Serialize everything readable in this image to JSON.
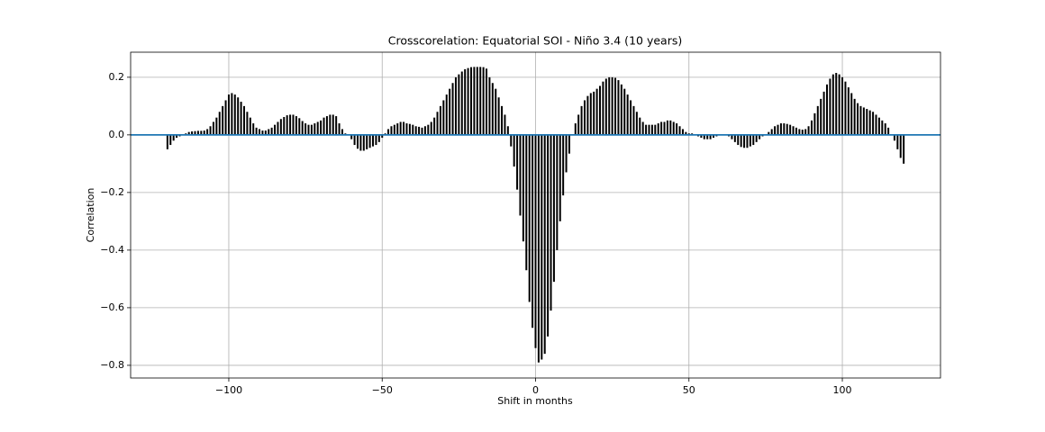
{
  "chart_data": {
    "type": "xcorr",
    "title": "Crosscorelation: Equatorial SOI - Niño 3.4 (10 years)",
    "xlabel": "Shift in months",
    "ylabel": "Correlation",
    "x": [
      -120,
      -119,
      -118,
      -117,
      -116,
      -115,
      -114,
      -113,
      -112,
      -111,
      -110,
      -109,
      -108,
      -107,
      -106,
      -105,
      -104,
      -103,
      -102,
      -101,
      -100,
      -99,
      -98,
      -97,
      -96,
      -95,
      -94,
      -93,
      -92,
      -91,
      -90,
      -89,
      -88,
      -87,
      -86,
      -85,
      -84,
      -83,
      -82,
      -81,
      -80,
      -79,
      -78,
      -77,
      -76,
      -75,
      -74,
      -73,
      -72,
      -71,
      -70,
      -69,
      -68,
      -67,
      -66,
      -65,
      -64,
      -63,
      -62,
      -61,
      -60,
      -59,
      -58,
      -57,
      -56,
      -55,
      -54,
      -53,
      -52,
      -51,
      -50,
      -49,
      -48,
      -47,
      -46,
      -45,
      -44,
      -43,
      -42,
      -41,
      -40,
      -39,
      -38,
      -37,
      -36,
      -35,
      -34,
      -33,
      -32,
      -31,
      -30,
      -29,
      -28,
      -27,
      -26,
      -25,
      -24,
      -23,
      -22,
      -21,
      -20,
      -19,
      -18,
      -17,
      -16,
      -15,
      -14,
      -13,
      -12,
      -11,
      -10,
      -9,
      -8,
      -7,
      -6,
      -5,
      -4,
      -3,
      -2,
      -1,
      0,
      1,
      2,
      3,
      4,
      5,
      6,
      7,
      8,
      9,
      10,
      11,
      12,
      13,
      14,
      15,
      16,
      17,
      18,
      19,
      20,
      21,
      22,
      23,
      24,
      25,
      26,
      27,
      28,
      29,
      30,
      31,
      32,
      33,
      34,
      35,
      36,
      37,
      38,
      39,
      40,
      41,
      42,
      43,
      44,
      45,
      46,
      47,
      48,
      49,
      50,
      51,
      52,
      53,
      54,
      55,
      56,
      57,
      58,
      59,
      60,
      61,
      62,
      63,
      64,
      65,
      66,
      67,
      68,
      69,
      70,
      71,
      72,
      73,
      74,
      75,
      76,
      77,
      78,
      79,
      80,
      81,
      82,
      83,
      84,
      85,
      86,
      87,
      88,
      89,
      90,
      91,
      92,
      93,
      94,
      95,
      96,
      97,
      98,
      99,
      100,
      101,
      102,
      103,
      104,
      105,
      106,
      107,
      108,
      109,
      110,
      111,
      112,
      113,
      114,
      115,
      116,
      117,
      118,
      119,
      120
    ],
    "values": [
      -0.05,
      -0.035,
      -0.02,
      -0.01,
      -0.005,
      0.0,
      0.005,
      0.01,
      0.012,
      0.013,
      0.014,
      0.014,
      0.015,
      0.02,
      0.03,
      0.045,
      0.06,
      0.08,
      0.1,
      0.12,
      0.14,
      0.145,
      0.14,
      0.13,
      0.115,
      0.1,
      0.08,
      0.06,
      0.04,
      0.025,
      0.02,
      0.015,
      0.015,
      0.02,
      0.025,
      0.035,
      0.045,
      0.055,
      0.062,
      0.068,
      0.07,
      0.07,
      0.065,
      0.058,
      0.048,
      0.04,
      0.035,
      0.035,
      0.04,
      0.045,
      0.05,
      0.06,
      0.065,
      0.07,
      0.07,
      0.065,
      0.04,
      0.02,
      0.005,
      0.0,
      -0.015,
      -0.035,
      -0.048,
      -0.055,
      -0.055,
      -0.05,
      -0.045,
      -0.04,
      -0.035,
      -0.025,
      -0.01,
      0.005,
      0.02,
      0.03,
      0.035,
      0.04,
      0.045,
      0.045,
      0.04,
      0.038,
      0.035,
      0.03,
      0.028,
      0.025,
      0.03,
      0.035,
      0.045,
      0.06,
      0.08,
      0.1,
      0.12,
      0.14,
      0.16,
      0.18,
      0.2,
      0.21,
      0.22,
      0.228,
      0.232,
      0.235,
      0.236,
      0.236,
      0.236,
      0.235,
      0.23,
      0.2,
      0.18,
      0.16,
      0.13,
      0.1,
      0.07,
      0.03,
      -0.04,
      -0.11,
      -0.19,
      -0.28,
      -0.37,
      -0.47,
      -0.58,
      -0.67,
      -0.74,
      -0.79,
      -0.78,
      -0.76,
      -0.7,
      -0.61,
      -0.51,
      -0.4,
      -0.3,
      -0.21,
      -0.13,
      -0.065,
      0.0,
      0.04,
      0.07,
      0.1,
      0.12,
      0.135,
      0.145,
      0.15,
      0.16,
      0.17,
      0.185,
      0.195,
      0.2,
      0.2,
      0.198,
      0.19,
      0.175,
      0.16,
      0.14,
      0.12,
      0.1,
      0.08,
      0.06,
      0.045,
      0.035,
      0.035,
      0.035,
      0.035,
      0.04,
      0.045,
      0.045,
      0.05,
      0.05,
      0.045,
      0.04,
      0.03,
      0.02,
      0.01,
      0.005,
      0.005,
      0.0,
      -0.005,
      -0.01,
      -0.015,
      -0.015,
      -0.015,
      -0.01,
      -0.005,
      0.0,
      0.0,
      0.0,
      -0.005,
      -0.015,
      -0.025,
      -0.035,
      -0.042,
      -0.045,
      -0.045,
      -0.04,
      -0.035,
      -0.025,
      -0.015,
      -0.005,
      0.0,
      0.01,
      0.02,
      0.03,
      0.035,
      0.04,
      0.04,
      0.038,
      0.035,
      0.03,
      0.025,
      0.02,
      0.018,
      0.02,
      0.03,
      0.05,
      0.075,
      0.1,
      0.125,
      0.15,
      0.175,
      0.195,
      0.21,
      0.215,
      0.21,
      0.2,
      0.185,
      0.165,
      0.145,
      0.125,
      0.11,
      0.1,
      0.095,
      0.09,
      0.085,
      0.08,
      0.07,
      0.06,
      0.05,
      0.04,
      0.025,
      0.0,
      -0.02,
      -0.05,
      -0.08,
      -0.1
    ],
    "color": "#000000",
    "baseline_color": "#1f77b4",
    "xlim": [
      -132,
      132
    ],
    "ylim": [
      -0.844,
      0.287
    ],
    "xticks": [
      {
        "value": -100,
        "label": "−100"
      },
      {
        "value": -50,
        "label": "−50"
      },
      0,
      50,
      100
    ],
    "yticks": [
      {
        "value": -0.8,
        "label": "−0.8"
      },
      {
        "value": -0.6,
        "label": "−0.6"
      },
      {
        "value": -0.4,
        "label": "−0.4"
      },
      {
        "value": -0.2,
        "label": "−0.2"
      },
      {
        "value": 0,
        "label": "0.0"
      },
      0.2
    ],
    "grid": true
  }
}
